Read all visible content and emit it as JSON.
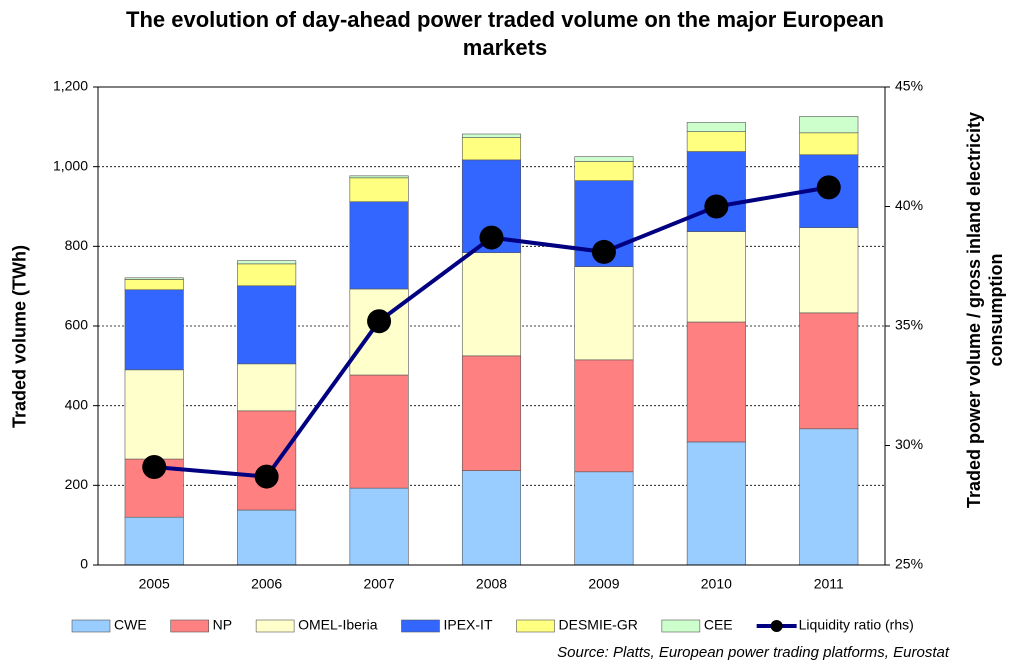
{
  "chart_data": {
    "type": "stacked_bar_line",
    "title": "The evolution of day-ahead power traded volume on the major European markets",
    "ylabel": "Traded volume (TWh)",
    "y2label": "Traded power volume / gross inland electricity consumption",
    "source": "Source:  Platts, European power trading platforms, Eurostat",
    "categories": [
      "2005",
      "2006",
      "2007",
      "2008",
      "2009",
      "2010",
      "2011"
    ],
    "series": [
      {
        "name": "CWE",
        "color": "#99ccff",
        "values": [
          120,
          138,
          193,
          237,
          234,
          309,
          342
        ]
      },
      {
        "name": "NP",
        "color": "#ff8080",
        "values": [
          146,
          249,
          284,
          288,
          281,
          301,
          291
        ]
      },
      {
        "name": "OMEL-Iberia",
        "color": "#ffffcc",
        "values": [
          224,
          118,
          216,
          259,
          234,
          227,
          214
        ]
      },
      {
        "name": "IPEX-IT",
        "color": "#3366ff",
        "values": [
          201,
          196,
          219,
          233,
          216,
          201,
          183
        ]
      },
      {
        "name": "DESMIE-GR",
        "color": "#ffff80",
        "values": [
          26,
          55,
          60,
          56,
          48,
          50,
          55
        ]
      },
      {
        "name": "CEE",
        "color": "#ccffcc",
        "values": [
          4,
          8,
          5,
          9,
          12,
          23,
          41
        ]
      },
      {
        "name": "Liquidity ratio (rhs)",
        "color": "#000080",
        "axis": "y2",
        "values": [
          29.1,
          28.7,
          35.2,
          38.7,
          38.1,
          40.0,
          40.8
        ]
      }
    ],
    "ylim": [
      0,
      1200
    ],
    "yticks": [
      0,
      200,
      400,
      600,
      800,
      {
        "value": 1000,
        "label": "1,000"
      },
      {
        "value": 1200,
        "label": "1,200"
      }
    ],
    "y2lim": [
      25,
      45
    ],
    "y2ticks": [
      {
        "value": 25,
        "label": "25%"
      },
      {
        "value": 30,
        "label": "30%"
      },
      {
        "value": 35,
        "label": "35%"
      },
      {
        "value": 40,
        "label": "40%"
      },
      {
        "value": 45,
        "label": "45%"
      }
    ],
    "grid": true,
    "legend": "bottom"
  }
}
